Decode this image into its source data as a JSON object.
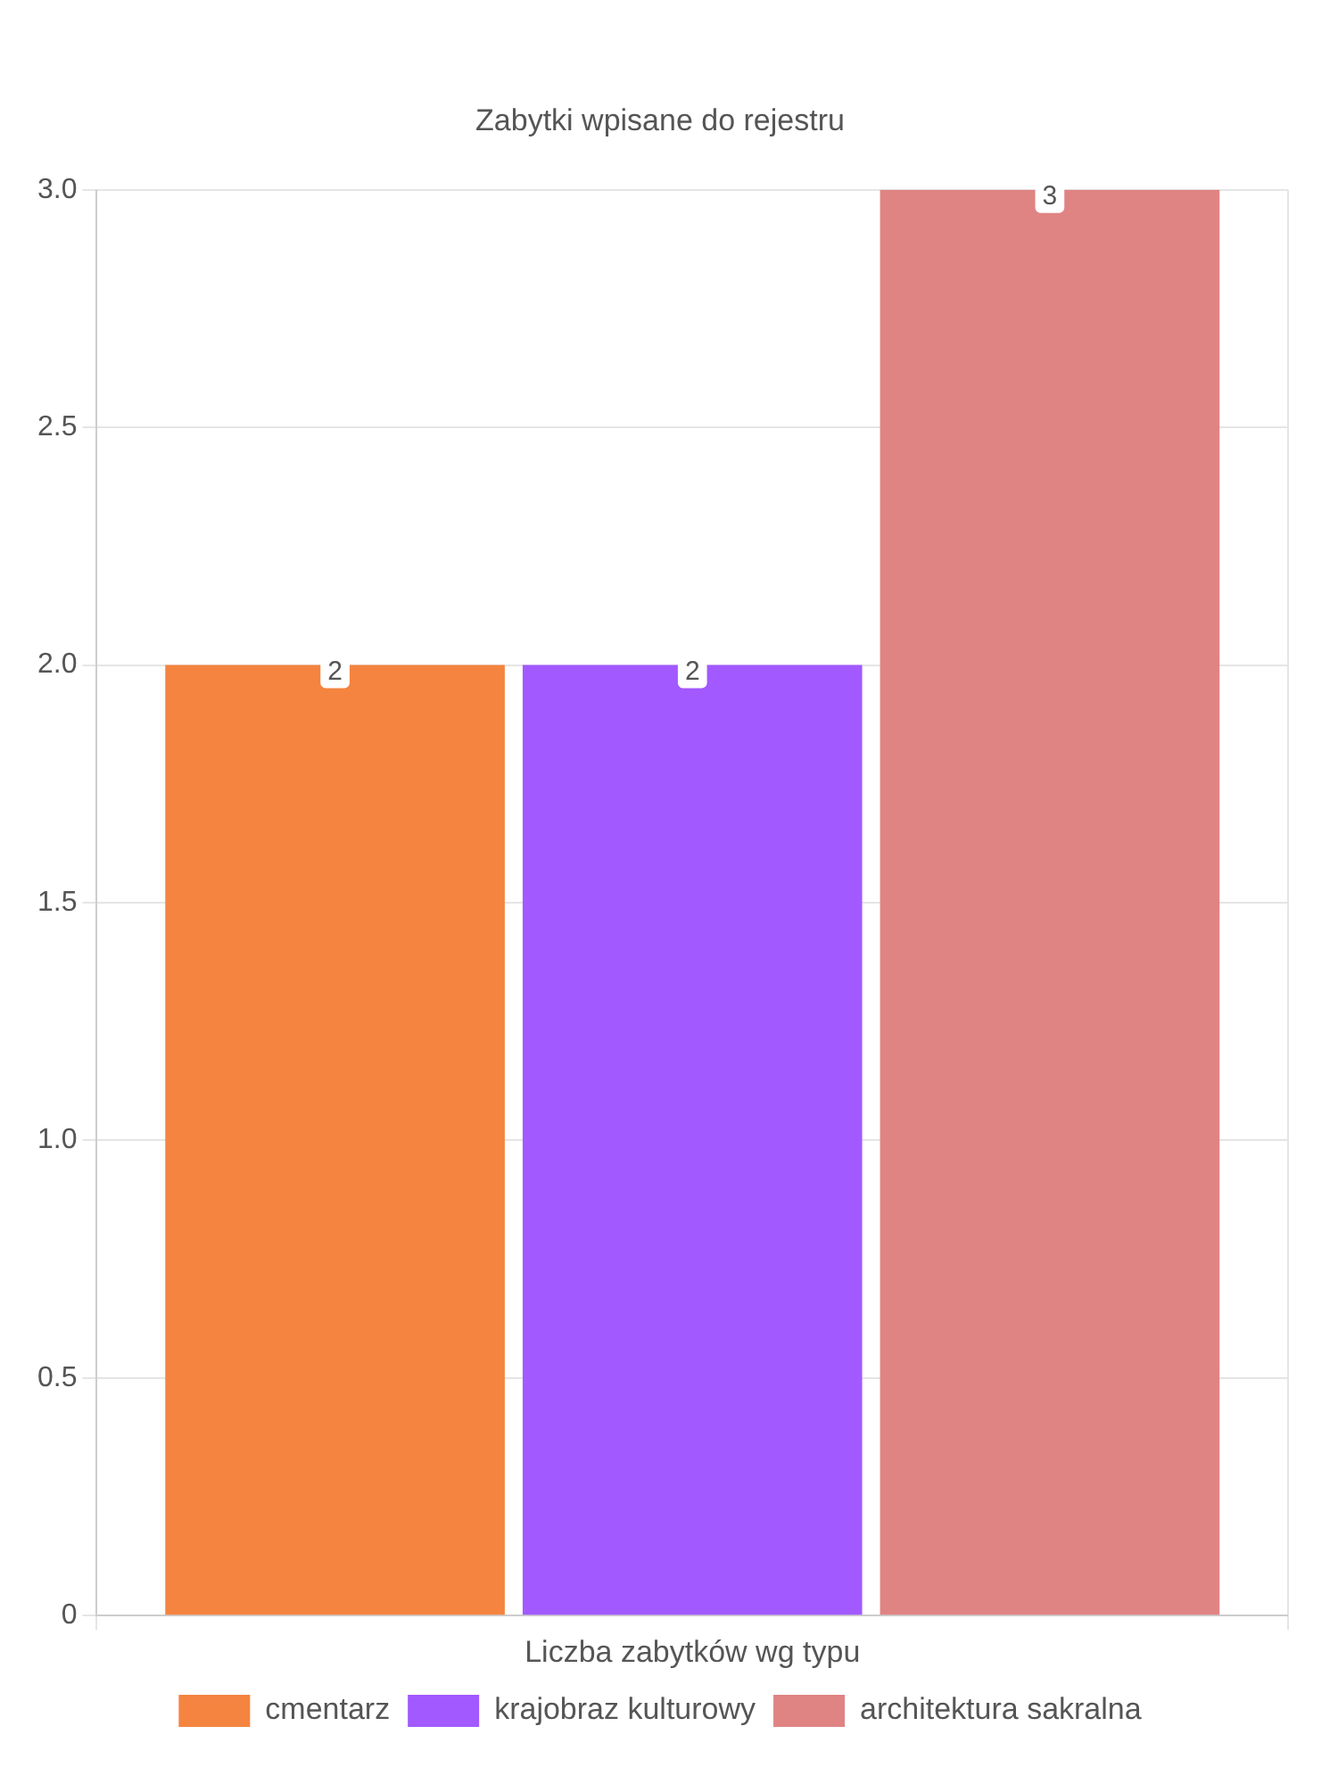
{
  "chart_data": {
    "type": "bar",
    "title": "Zabytki wpisane do rejestru",
    "categories": [
      "Liczba zabytków wg typu"
    ],
    "series": [
      {
        "name": "cmentarz",
        "color": "#f4843f",
        "values": [
          2
        ]
      },
      {
        "name": "krajobraz kulturowy",
        "color": "#a259ff",
        "values": [
          2
        ]
      },
      {
        "name": "architektura sakralna",
        "color": "#e08383",
        "values": [
          3
        ]
      }
    ],
    "ylim": [
      0,
      3
    ],
    "yticks": [
      0,
      {
        "value": 0.5,
        "label": "0.5"
      },
      {
        "value": 1,
        "label": "1.0"
      },
      {
        "value": 1.5,
        "label": "1.5"
      },
      {
        "value": 2,
        "label": "2.0"
      },
      {
        "value": 2.5,
        "label": "2.5"
      },
      {
        "value": 3,
        "label": "3.0"
      }
    ],
    "grid": true,
    "legend": "bottom",
    "data_labels": true
  }
}
